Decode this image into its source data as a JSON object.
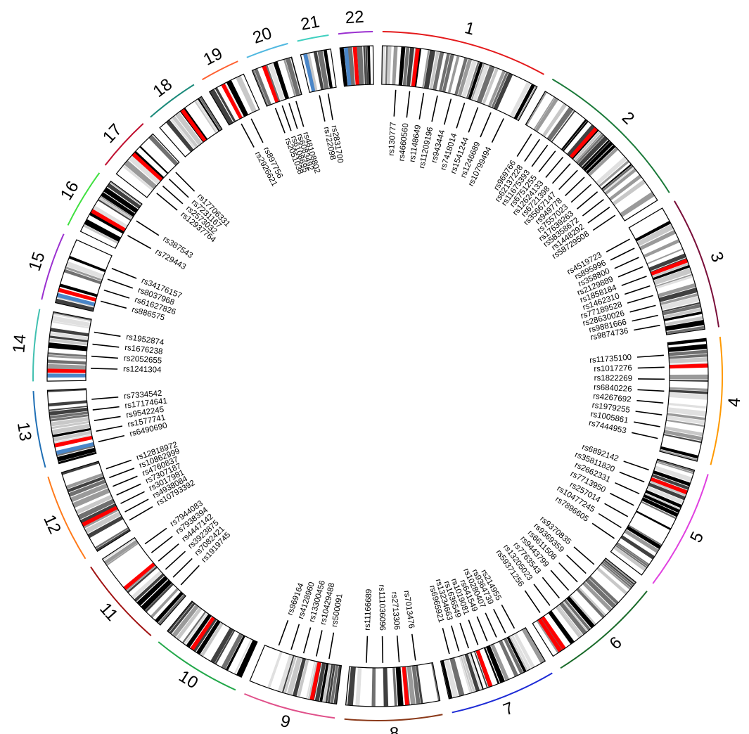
{
  "chromosomes": [
    {
      "name": "1",
      "size": 248,
      "color": "#e41a1c",
      "highlight": [
        0.22
      ],
      "blue": []
    },
    {
      "name": "2",
      "size": 242,
      "color": "#1b7a3a",
      "highlight": [
        0.4
      ],
      "blue": []
    },
    {
      "name": "3",
      "size": 198,
      "color": "#7a0f3a",
      "highlight": [
        0.45
      ],
      "blue": []
    },
    {
      "name": "4",
      "size": 190,
      "color": "#ff9900",
      "highlight": [
        0.22
      ],
      "blue": []
    },
    {
      "name": "5",
      "size": 181,
      "color": "#e040e0",
      "highlight": [
        0.2
      ],
      "blue": []
    },
    {
      "name": "6",
      "size": 171,
      "color": "#1a6b2a",
      "highlight": [
        0.88,
        0.92
      ],
      "blue": []
    },
    {
      "name": "7",
      "size": 159,
      "color": "#1d2bd6",
      "highlight": [
        0.58
      ],
      "blue": []
    },
    {
      "name": "8",
      "size": 145,
      "color": "#8b3a1a",
      "highlight": [
        0.35
      ],
      "blue": []
    },
    {
      "name": "9",
      "size": 138,
      "color": "#e0508a",
      "highlight": [
        0.28
      ],
      "blue": []
    },
    {
      "name": "10",
      "size": 134,
      "color": "#22a84a",
      "highlight": [
        0.65
      ],
      "blue": []
    },
    {
      "name": "11",
      "size": 135,
      "color": "#a01010",
      "highlight": [
        0.58
      ],
      "blue": []
    },
    {
      "name": "12",
      "size": 133,
      "color": "#ff7a1a",
      "highlight": [
        0.35
      ],
      "blue": []
    },
    {
      "name": "13",
      "size": 114,
      "color": "#1f6fb5",
      "highlight": [
        0.25
      ],
      "blue": [
        0.15
      ]
    },
    {
      "name": "14",
      "size": 107,
      "color": "#40c0b0",
      "highlight": [
        0.15
      ],
      "blue": [
        0.08
      ]
    },
    {
      "name": "15",
      "size": 102,
      "color": "#9b30d0",
      "highlight": [
        0.2
      ],
      "blue": [
        0.12
      ]
    },
    {
      "name": "16",
      "size": 90,
      "color": "#40e040",
      "highlight": [
        0.4
      ],
      "blue": []
    },
    {
      "name": "17",
      "size": 83,
      "color": "#c01030",
      "highlight": [
        0.48
      ],
      "blue": []
    },
    {
      "name": "18",
      "size": 80,
      "color": "#1a8a7a",
      "highlight": [
        0.55
      ],
      "blue": []
    },
    {
      "name": "19",
      "size": 59,
      "color": "#ff6030",
      "highlight": [
        0.4
      ],
      "blue": []
    },
    {
      "name": "20",
      "size": 64,
      "color": "#50b8e0",
      "highlight": [
        0.3
      ],
      "blue": []
    },
    {
      "name": "21",
      "size": 47,
      "color": "#40d0c0",
      "highlight": [],
      "blue": [
        0.15
      ]
    },
    {
      "name": "22",
      "size": 51,
      "color": "#9b30d0",
      "highlight": [
        0.45
      ],
      "blue": [
        0.18
      ]
    }
  ],
  "snps": [
    {
      "chr": "1",
      "name": "rs130777"
    },
    {
      "chr": "1",
      "name": "rs4660560"
    },
    {
      "chr": "1",
      "name": "rs1148649"
    },
    {
      "chr": "1",
      "name": "rs11209196"
    },
    {
      "chr": "1",
      "name": "rs943444"
    },
    {
      "chr": "1",
      "name": "rs7418014"
    },
    {
      "chr": "1",
      "name": "rs1541244"
    },
    {
      "chr": "1",
      "name": "rs1246689"
    },
    {
      "chr": "1",
      "name": "rs10799494"
    },
    {
      "chr": "2",
      "name": "rs969766"
    },
    {
      "chr": "2",
      "name": "rs62137228"
    },
    {
      "chr": "2",
      "name": "rs11675393"
    },
    {
      "chr": "2",
      "name": "rs6751255"
    },
    {
      "chr": "2",
      "name": "rs12624133"
    },
    {
      "chr": "2",
      "name": "rs6721398"
    },
    {
      "chr": "2",
      "name": "rs35667147"
    },
    {
      "chr": "2",
      "name": "rs949778"
    },
    {
      "chr": "2",
      "name": "rs7557023"
    },
    {
      "chr": "2",
      "name": "rs17639263"
    },
    {
      "chr": "2",
      "name": "rs58358672"
    },
    {
      "chr": "2",
      "name": "rs1448292"
    },
    {
      "chr": "2",
      "name": "rs58729508"
    },
    {
      "chr": "3",
      "name": "rs4519723"
    },
    {
      "chr": "3",
      "name": "rs895996"
    },
    {
      "chr": "3",
      "name": "rs358800"
    },
    {
      "chr": "3",
      "name": "rs2129889"
    },
    {
      "chr": "3",
      "name": "rs1858184"
    },
    {
      "chr": "3",
      "name": "rs1462310"
    },
    {
      "chr": "3",
      "name": "rs77189528"
    },
    {
      "chr": "3",
      "name": "rs28630026"
    },
    {
      "chr": "3",
      "name": "rs9881666"
    },
    {
      "chr": "3",
      "name": "rs9874736"
    },
    {
      "chr": "4",
      "name": "rs11735100"
    },
    {
      "chr": "4",
      "name": "rs1017276"
    },
    {
      "chr": "4",
      "name": "rs1822269"
    },
    {
      "chr": "4",
      "name": "rs6840226"
    },
    {
      "chr": "4",
      "name": "rs4267692"
    },
    {
      "chr": "4",
      "name": "rs1979255"
    },
    {
      "chr": "4",
      "name": "rs1005861"
    },
    {
      "chr": "4",
      "name": "rs7444953"
    },
    {
      "chr": "5",
      "name": "rs6892142"
    },
    {
      "chr": "5",
      "name": "rs35811820"
    },
    {
      "chr": "5",
      "name": "rs2662331"
    },
    {
      "chr": "5",
      "name": "rs7713950"
    },
    {
      "chr": "5",
      "name": "rs257014"
    },
    {
      "chr": "5",
      "name": "rs10477245"
    },
    {
      "chr": "5",
      "name": "rs7896605"
    },
    {
      "chr": "6",
      "name": "rs9370835"
    },
    {
      "chr": "6",
      "name": "rs9369359"
    },
    {
      "chr": "6",
      "name": "rs6611508"
    },
    {
      "chr": "6",
      "name": "rs9443799"
    },
    {
      "chr": "6",
      "name": "rs7763543"
    },
    {
      "chr": "6",
      "name": "rs13205023"
    },
    {
      "chr": "6",
      "name": "rs59371256"
    },
    {
      "chr": "7",
      "name": "rs214955"
    },
    {
      "chr": "7",
      "name": "rs9364739"
    },
    {
      "chr": "7",
      "name": "rs10280407"
    },
    {
      "chr": "7",
      "name": "rs641549"
    },
    {
      "chr": "7",
      "name": "rs1019081"
    },
    {
      "chr": "7",
      "name": "rs1636549"
    },
    {
      "chr": "7",
      "name": "rs13234663"
    },
    {
      "chr": "7",
      "name": "rs6965921"
    },
    {
      "chr": "8",
      "name": "rs7013476"
    },
    {
      "chr": "8",
      "name": "rs2713306"
    },
    {
      "chr": "8",
      "name": "rs111036096"
    },
    {
      "chr": "8",
      "name": "rs11166689"
    },
    {
      "chr": "9",
      "name": "rs500091"
    },
    {
      "chr": "9",
      "name": "rs10429488"
    },
    {
      "chr": "9",
      "name": "rs13300456"
    },
    {
      "chr": "9",
      "name": "rs4128960"
    },
    {
      "chr": "9",
      "name": "rs969164"
    },
    {
      "chr": "11",
      "name": "rs1919745"
    },
    {
      "chr": "11",
      "name": "rs7082421"
    },
    {
      "chr": "11",
      "name": "rs3923875"
    },
    {
      "chr": "11",
      "name": "rs4447142"
    },
    {
      "chr": "11",
      "name": "rs7938394"
    },
    {
      "chr": "11",
      "name": "rs7944083"
    },
    {
      "chr": "12",
      "name": "rs10793392"
    },
    {
      "chr": "12",
      "name": "rs4938084"
    },
    {
      "chr": "12",
      "name": "rs3017981"
    },
    {
      "chr": "12",
      "name": "rs7307187"
    },
    {
      "chr": "12",
      "name": "rs4760837"
    },
    {
      "chr": "12",
      "name": "rs10862999"
    },
    {
      "chr": "12",
      "name": "rs12818972"
    },
    {
      "chr": "13",
      "name": "rs6490690"
    },
    {
      "chr": "13",
      "name": "rs1577741"
    },
    {
      "chr": "13",
      "name": "rs9542245"
    },
    {
      "chr": "13",
      "name": "rs17174641"
    },
    {
      "chr": "13",
      "name": "rs7334542"
    },
    {
      "chr": "14",
      "name": "rs1241304"
    },
    {
      "chr": "14",
      "name": "rs2052655"
    },
    {
      "chr": "14",
      "name": "rs1676238"
    },
    {
      "chr": "14",
      "name": "rs1952874"
    },
    {
      "chr": "15",
      "name": "rs886575"
    },
    {
      "chr": "15",
      "name": "rs61627826"
    },
    {
      "chr": "15",
      "name": "rs8037968"
    },
    {
      "chr": "15",
      "name": "rs34176157"
    },
    {
      "chr": "16",
      "name": "rs729443"
    },
    {
      "chr": "16",
      "name": "rs387543"
    },
    {
      "chr": "17",
      "name": "rs12937764"
    },
    {
      "chr": "17",
      "name": "rs2573032"
    },
    {
      "chr": "17",
      "name": "rs7231167"
    },
    {
      "chr": "17",
      "name": "rs17706331"
    },
    {
      "chr": "19",
      "name": "rs2926621"
    },
    {
      "chr": "19",
      "name": "rs897756"
    },
    {
      "chr": "20",
      "name": "rs2051038"
    },
    {
      "chr": "20",
      "name": "rs6108695"
    },
    {
      "chr": "20",
      "name": "rs6083492"
    },
    {
      "chr": "20",
      "name": "rs48108802"
    },
    {
      "chr": "21",
      "name": "rs722098"
    },
    {
      "chr": "21",
      "name": "rs2831700"
    }
  ]
}
